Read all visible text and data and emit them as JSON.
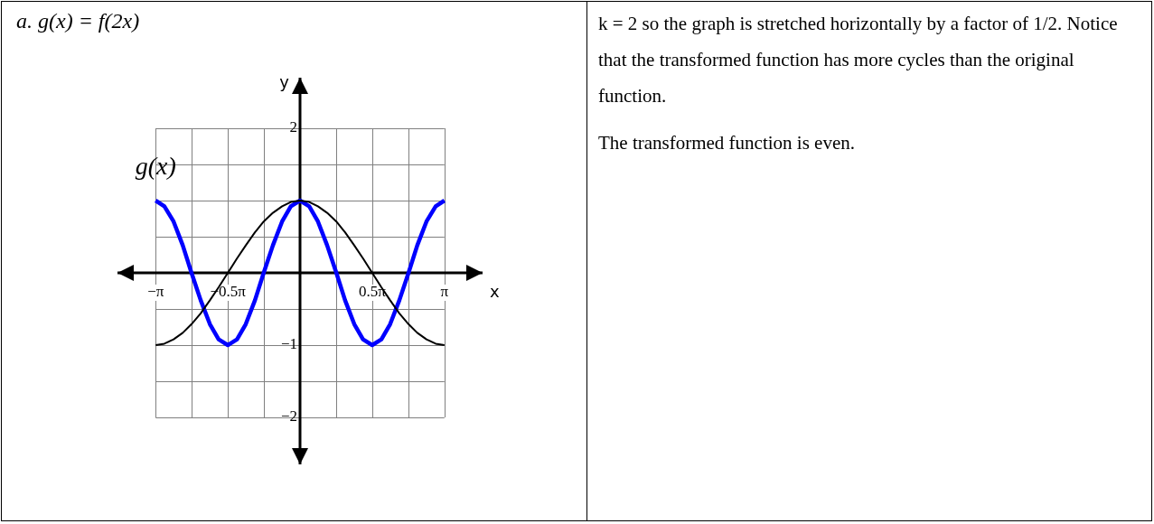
{
  "chart_data": {
    "type": "line",
    "title": "a. g(x) = f(2x)",
    "xlabel": "x",
    "ylabel": "y",
    "x": [
      -3.14,
      -2.95,
      -2.75,
      -2.55,
      -2.36,
      -2.16,
      -1.96,
      -1.77,
      -1.57,
      -1.37,
      -1.18,
      -0.98,
      -0.79,
      -0.59,
      -0.39,
      -0.2,
      0,
      0.2,
      0.39,
      0.59,
      0.79,
      0.98,
      1.18,
      1.37,
      1.57,
      1.77,
      1.96,
      2.16,
      2.36,
      2.55,
      2.75,
      2.95,
      3.14
    ],
    "series": [
      {
        "color": "#000000",
        "values": [
          -1,
          -0.98,
          -0.92,
          -0.83,
          -0.71,
          -0.56,
          -0.38,
          -0.2,
          0,
          0.2,
          0.38,
          0.56,
          0.71,
          0.83,
          0.92,
          0.98,
          1,
          0.98,
          0.92,
          0.83,
          0.71,
          0.56,
          0.38,
          0.2,
          0,
          -0.2,
          -0.38,
          -0.56,
          -0.71,
          -0.83,
          -0.92,
          -0.98,
          -1
        ]
      },
      {
        "color": "#0000ff",
        "values": [
          1,
          0.92,
          0.71,
          0.38,
          0,
          -0.38,
          -0.71,
          -0.92,
          -1,
          -0.92,
          -0.71,
          -0.38,
          0,
          0.38,
          0.71,
          0.92,
          1,
          0.92,
          0.71,
          0.38,
          0,
          -0.38,
          -0.71,
          -0.92,
          -1,
          -0.92,
          -0.71,
          -0.38,
          0,
          0.38,
          0.71,
          0.92,
          1
        ]
      }
    ],
    "xlim": [
      -3.97,
      3.97
    ],
    "ylim": [
      -2.65,
      2.7
    ],
    "xticks": [
      {
        "value": -3.14,
        "label": "−π"
      },
      {
        "value": -2.36,
        "label": null
      },
      {
        "value": -1.57,
        "label": "−0.5π"
      },
      {
        "value": -0.79,
        "label": null
      },
      {
        "value": 0,
        "label": null
      },
      {
        "value": 0.79,
        "label": null
      },
      {
        "value": 1.57,
        "label": "0.5π"
      },
      {
        "value": 2.36,
        "label": null
      },
      {
        "value": 3.14,
        "label": "π"
      }
    ],
    "yticks": [
      {
        "value": -2,
        "label": "−2"
      },
      {
        "value": -1.5,
        "label": null
      },
      {
        "value": -1,
        "label": "−1"
      },
      {
        "value": -0.5,
        "label": null
      },
      {
        "value": 0,
        "label": null
      },
      {
        "value": 0.5,
        "label": null
      },
      {
        "value": 1,
        "label": null
      },
      {
        "value": 1.5,
        "label": null
      },
      {
        "value": 2,
        "label": "2"
      }
    ],
    "grid": true,
    "marker": "none",
    "annotations": [
      {
        "text": "g(x)",
        "x": -3.14,
        "y": 1
      },
      "k = 2 so the graph is stretched horizontally by a factor of 1/2. Notice that the transformed function has more cycles than the original function.",
      "The transformed function is even."
    ]
  }
}
